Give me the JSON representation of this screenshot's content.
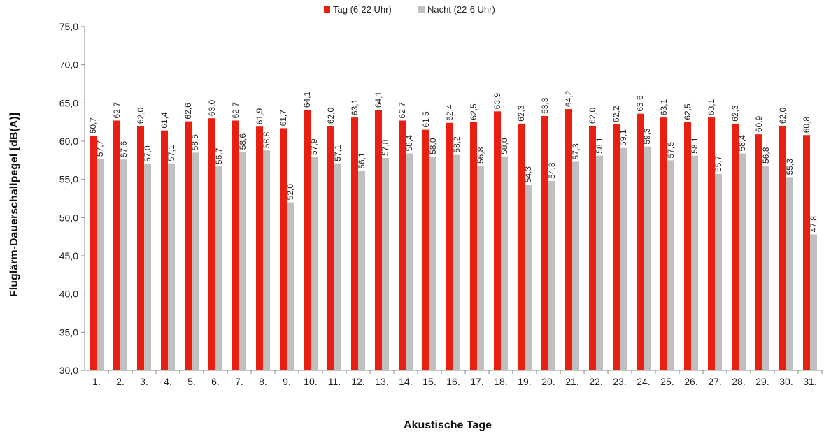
{
  "chart_data": {
    "type": "bar",
    "xlabel": "Akustische Tage",
    "ylabel": "Fluglärm-Dauerschallpegel [dB(A)]",
    "ylim": [
      30,
      75
    ],
    "yticks": [
      "30,0",
      "35,0",
      "40,0",
      "45,0",
      "50,0",
      "55,0",
      "60,0",
      "65,0",
      "70,0",
      "75,0"
    ],
    "categories": [
      "1.",
      "2.",
      "3.",
      "4.",
      "5.",
      "6.",
      "7.",
      "8.",
      "9.",
      "10.",
      "11.",
      "12.",
      "13.",
      "14.",
      "15.",
      "16.",
      "17.",
      "18.",
      "19.",
      "20.",
      "21.",
      "22.",
      "23.",
      "24.",
      "25.",
      "26.",
      "27.",
      "28.",
      "29.",
      "30.",
      "31."
    ],
    "legend_position": "top-center",
    "grid": false,
    "series": [
      {
        "name": "Tag (6-22 Uhr)",
        "color": "#e8200f",
        "values": [
          60.7,
          62.7,
          62.0,
          61.4,
          62.6,
          63.0,
          62.7,
          61.9,
          61.7,
          64.1,
          62.0,
          63.1,
          64.1,
          62.7,
          61.5,
          62.4,
          62.5,
          63.9,
          62.3,
          63.3,
          64.2,
          62.0,
          62.2,
          63.6,
          63.1,
          62.5,
          63.1,
          62.3,
          60.9,
          62.0,
          60.8
        ],
        "labels": [
          "60,7",
          "62,7",
          "62,0",
          "61,4",
          "62,6",
          "63,0",
          "62,7",
          "61,9",
          "61,7",
          "64,1",
          "62,0",
          "63,1",
          "64,1",
          "62,7",
          "61,5",
          "62,4",
          "62,5",
          "63,9",
          "62,3",
          "63,3",
          "64,2",
          "62,0",
          "62,2",
          "63,6",
          "63,1",
          "62,5",
          "63,1",
          "62,3",
          "60,9",
          "62,0",
          "60,8"
        ]
      },
      {
        "name": "Nacht (22-6 Uhr)",
        "color": "#bfbfbf",
        "values": [
          57.7,
          57.6,
          57.0,
          57.1,
          58.5,
          56.7,
          58.6,
          58.8,
          52.0,
          57.9,
          57.1,
          56.1,
          57.8,
          58.4,
          58.0,
          58.2,
          56.8,
          58.0,
          54.3,
          54.8,
          57.3,
          58.1,
          59.1,
          59.3,
          57.5,
          58.1,
          55.7,
          58.4,
          56.8,
          55.3,
          47.8
        ],
        "labels": [
          "57,7",
          "57,6",
          "57,0",
          "57,1",
          "58,5",
          "56,7",
          "58,6",
          "58,8",
          "52,0",
          "57,9",
          "57,1",
          "56,1",
          "57,8",
          "58,4",
          "58,0",
          "58,2",
          "56,8",
          "58,0",
          "54,3",
          "54,8",
          "57,3",
          "58,1",
          "59,1",
          "59,3",
          "57,5",
          "58,1",
          "55,7",
          "58,4",
          "56,8",
          "55,3",
          "47,8"
        ]
      }
    ]
  }
}
